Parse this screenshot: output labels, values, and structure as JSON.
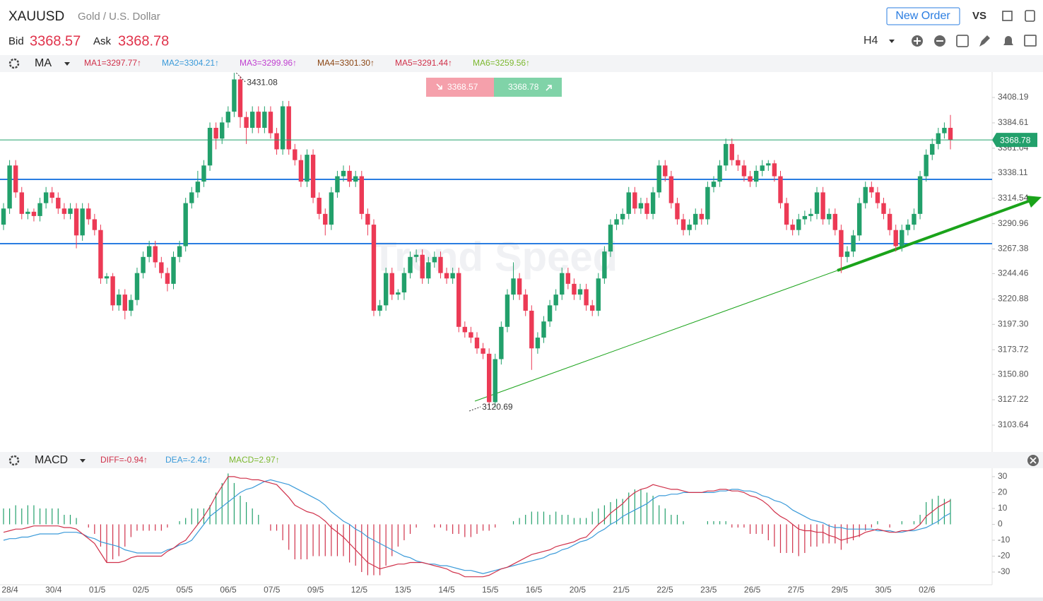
{
  "header": {
    "symbol": "XAUUSD",
    "name": "Gold / U.S. Dollar",
    "bid_label": "Bid",
    "bid": 3368.57,
    "ask_label": "Ask",
    "ask": 3368.78,
    "new_order": "New Order",
    "vs": "VS",
    "timeframe": "H4"
  },
  "chart_data": {
    "type": "candlestick",
    "indicator": "MA",
    "watermark": "Trend Speed",
    "ma_labels": [
      "MA1=3297.77↑",
      "MA2=3304.21↑",
      "MA3=3299.96↑",
      "MA4=3301.30↑",
      "MA5=3291.44↑",
      "MA6=3259.56↑"
    ],
    "ma_colors": [
      "#d0314a",
      "#3a9ad9",
      "#c040d0",
      "#8b4513",
      "#d0314a",
      "#7cb82f"
    ],
    "up_color": "#22a06b",
    "down_color": "#ec3a55",
    "last_price": 3368.78,
    "last_color": "#22a06b",
    "ylim": [
      3080,
      3431.2
    ],
    "yticks": [
      {
        "value": 3408.19,
        "label": "3408.19"
      },
      3384.61,
      3361.04,
      3338.11,
      3314.54,
      3290.96,
      3267.38,
      3244.46,
      3220.88,
      {
        "value": 3197.3,
        "label": "3197.30"
      },
      3173.72,
      {
        "value": 3150.8,
        "label": "3150.80"
      },
      3127.22,
      3103.64
    ],
    "ohlc": [
      [
        3290,
        3310,
        3285,
        3305
      ],
      [
        3305,
        3350,
        3300,
        3345
      ],
      [
        3345,
        3350,
        3315,
        3320
      ],
      [
        3320,
        3325,
        3295,
        3300
      ],
      [
        3300,
        3305,
        3295,
        3302
      ],
      [
        3302,
        3305,
        3293,
        3298
      ],
      [
        3298,
        3315,
        3293,
        3310
      ],
      [
        3310,
        3325,
        3305,
        3320
      ],
      [
        3320,
        3325,
        3310,
        3315
      ],
      [
        3315,
        3320,
        3300,
        3305
      ],
      [
        3305,
        3310,
        3295,
        3300
      ],
      [
        3300,
        3310,
        3295,
        3305
      ],
      [
        3305,
        3310,
        3268,
        3280
      ],
      [
        3280,
        3310,
        3275,
        3305
      ],
      [
        3305,
        3310,
        3290,
        3295
      ],
      [
        3295,
        3300,
        3280,
        3285
      ],
      [
        3285,
        3290,
        3235,
        3240
      ],
      [
        3240,
        3245,
        3235,
        3242
      ],
      [
        3242,
        3245,
        3210,
        3215
      ],
      [
        3215,
        3230,
        3210,
        3225
      ],
      [
        3225,
        3230,
        3202,
        3210
      ],
      [
        3210,
        3225,
        3205,
        3220
      ],
      [
        3220,
        3250,
        3215,
        3245
      ],
      [
        3245,
        3265,
        3240,
        3260
      ],
      [
        3260,
        3275,
        3255,
        3270
      ],
      [
        3270,
        3275,
        3250,
        3255
      ],
      [
        3255,
        3260,
        3240,
        3245
      ],
      [
        3245,
        3250,
        3228,
        3235
      ],
      [
        3235,
        3265,
        3230,
        3260
      ],
      [
        3260,
        3275,
        3255,
        3270
      ],
      [
        3270,
        3315,
        3265,
        3310
      ],
      [
        3310,
        3325,
        3305,
        3320
      ],
      [
        3320,
        3340,
        3315,
        3330
      ],
      [
        3330,
        3350,
        3325,
        3345
      ],
      [
        3345,
        3385,
        3340,
        3380
      ],
      [
        3380,
        3385,
        3360,
        3370
      ],
      [
        3370,
        3390,
        3365,
        3385
      ],
      [
        3385,
        3400,
        3380,
        3395
      ],
      [
        3395,
        3431.08,
        3390,
        3425
      ],
      [
        3425,
        3428,
        3380,
        3390
      ],
      [
        3390,
        3395,
        3365,
        3380
      ],
      [
        3380,
        3400,
        3375,
        3395
      ],
      [
        3395,
        3400,
        3375,
        3380
      ],
      [
        3380,
        3400,
        3375,
        3395
      ],
      [
        3395,
        3400,
        3370,
        3375
      ],
      [
        3375,
        3380,
        3355,
        3360
      ],
      [
        3360,
        3405,
        3355,
        3400
      ],
      [
        3400,
        3405,
        3355,
        3360
      ],
      [
        3360,
        3365,
        3345,
        3350
      ],
      [
        3350,
        3355,
        3325,
        3330
      ],
      [
        3330,
        3360,
        3325,
        3355
      ],
      [
        3355,
        3360,
        3310,
        3315
      ],
      [
        3315,
        3320,
        3295,
        3300
      ],
      [
        3300,
        3305,
        3280,
        3290
      ],
      [
        3290,
        3325,
        3285,
        3320
      ],
      [
        3320,
        3340,
        3315,
        3335
      ],
      [
        3335,
        3345,
        3330,
        3340
      ],
      [
        3340,
        3345,
        3325,
        3330
      ],
      [
        3330,
        3340,
        3325,
        3335
      ],
      [
        3335,
        3340,
        3295,
        3300
      ],
      [
        3300,
        3305,
        3280,
        3290
      ],
      [
        3290,
        3295,
        3205,
        3210
      ],
      [
        3210,
        3220,
        3205,
        3215
      ],
      [
        3215,
        3250,
        3210,
        3245
      ],
      [
        3245,
        3250,
        3220,
        3225
      ],
      [
        3225,
        3230,
        3220,
        3227
      ],
      [
        3227,
        3250,
        3220,
        3245
      ],
      [
        3245,
        3265,
        3240,
        3260
      ],
      [
        3260,
        3267,
        3255,
        3262
      ],
      [
        3262,
        3267,
        3235,
        3240
      ],
      [
        3240,
        3260,
        3235,
        3255
      ],
      [
        3255,
        3265,
        3250,
        3260
      ],
      [
        3260,
        3265,
        3240,
        3245
      ],
      [
        3245,
        3250,
        3235,
        3240
      ],
      [
        3240,
        3250,
        3235,
        3245
      ],
      [
        3245,
        3250,
        3190,
        3195
      ],
      [
        3195,
        3200,
        3185,
        3190
      ],
      [
        3190,
        3195,
        3180,
        3185
      ],
      [
        3185,
        3190,
        3170,
        3175
      ],
      [
        3175,
        3180,
        3165,
        3170
      ],
      [
        3170,
        3175,
        3120.69,
        3125
      ],
      [
        3125,
        3170,
        3120,
        3165
      ],
      [
        3165,
        3200,
        3160,
        3195
      ],
      [
        3195,
        3230,
        3190,
        3225
      ],
      [
        3225,
        3255,
        3220,
        3240
      ],
      [
        3240,
        3245,
        3220,
        3225
      ],
      [
        3225,
        3230,
        3205,
        3210
      ],
      [
        3210,
        3215,
        3155,
        3175
      ],
      [
        3175,
        3190,
        3170,
        3185
      ],
      [
        3185,
        3205,
        3180,
        3200
      ],
      [
        3200,
        3220,
        3195,
        3215
      ],
      [
        3215,
        3230,
        3210,
        3225
      ],
      [
        3225,
        3250,
        3220,
        3245
      ],
      [
        3245,
        3250,
        3230,
        3235
      ],
      [
        3235,
        3240,
        3220,
        3225
      ],
      [
        3225,
        3235,
        3220,
        3230
      ],
      [
        3230,
        3235,
        3210,
        3215
      ],
      [
        3215,
        3220,
        3205,
        3210
      ],
      [
        3210,
        3245,
        3205,
        3240
      ],
      [
        3240,
        3270,
        3235,
        3265
      ],
      [
        3265,
        3295,
        3260,
        3290
      ],
      [
        3290,
        3300,
        3285,
        3295
      ],
      [
        3295,
        3305,
        3290,
        3300
      ],
      [
        3300,
        3325,
        3295,
        3320
      ],
      [
        3320,
        3325,
        3300,
        3305
      ],
      [
        3305,
        3315,
        3300,
        3310
      ],
      [
        3310,
        3315,
        3295,
        3300
      ],
      [
        3300,
        3325,
        3295,
        3320
      ],
      [
        3320,
        3350,
        3315,
        3345
      ],
      [
        3345,
        3350,
        3330,
        3335
      ],
      [
        3335,
        3340,
        3305,
        3310
      ],
      [
        3310,
        3315,
        3290,
        3295
      ],
      [
        3295,
        3300,
        3280,
        3285
      ],
      [
        3285,
        3295,
        3280,
        3290
      ],
      [
        3290,
        3305,
        3285,
        3300
      ],
      [
        3300,
        3305,
        3290,
        3295
      ],
      [
        3295,
        3330,
        3290,
        3325
      ],
      [
        3325,
        3335,
        3320,
        3330
      ],
      [
        3330,
        3350,
        3325,
        3345
      ],
      [
        3345,
        3370,
        3340,
        3365
      ],
      [
        3365,
        3370,
        3345,
        3350
      ],
      [
        3350,
        3355,
        3340,
        3345
      ],
      [
        3345,
        3350,
        3330,
        3335
      ],
      [
        3335,
        3340,
        3325,
        3330
      ],
      [
        3330,
        3345,
        3325,
        3340
      ],
      [
        3340,
        3350,
        3335,
        3345
      ],
      [
        3345,
        3350,
        3340,
        3347
      ],
      [
        3347,
        3350,
        3330,
        3335
      ],
      [
        3335,
        3340,
        3305,
        3310
      ],
      [
        3310,
        3315,
        3285,
        3290
      ],
      [
        3290,
        3295,
        3280,
        3285
      ],
      [
        3285,
        3300,
        3280,
        3295
      ],
      [
        3295,
        3303,
        3290,
        3298
      ],
      [
        3298,
        3305,
        3293,
        3300
      ],
      [
        3300,
        3325,
        3295,
        3320
      ],
      [
        3320,
        3325,
        3290,
        3295
      ],
      [
        3295,
        3305,
        3290,
        3300
      ],
      [
        3300,
        3305,
        3280,
        3285
      ],
      [
        3285,
        3290,
        3245,
        3260
      ],
      [
        3260,
        3270,
        3255,
        3265
      ],
      [
        3265,
        3285,
        3260,
        3280
      ],
      [
        3280,
        3315,
        3275,
        3310
      ],
      [
        3310,
        3330,
        3305,
        3325
      ],
      [
        3325,
        3330,
        3315,
        3320
      ],
      [
        3320,
        3325,
        3305,
        3310
      ],
      [
        3310,
        3315,
        3295,
        3300
      ],
      [
        3300,
        3305,
        3280,
        3285
      ],
      [
        3285,
        3290,
        3265,
        3270
      ],
      [
        3270,
        3290,
        3265,
        3285
      ],
      [
        3285,
        3295,
        3280,
        3290
      ],
      [
        3290,
        3305,
        3285,
        3300
      ],
      [
        3300,
        3340,
        3295,
        3335
      ],
      [
        3335,
        3360,
        3330,
        3355
      ],
      [
        3355,
        3370,
        3350,
        3365
      ],
      [
        3365,
        3380,
        3360,
        3375
      ],
      [
        3375,
        3385,
        3370,
        3380
      ],
      [
        3380,
        3392,
        3360,
        3368.78
      ]
    ],
    "dates": [
      "28/4",
      "30/4",
      "01/5",
      "02/5",
      "05/5",
      "06/5",
      "07/5",
      "09/5",
      "12/5",
      "13/5",
      "14/5",
      "15/5",
      "16/5",
      "20/5",
      "21/5",
      "22/5",
      "23/5",
      "26/5",
      "27/5",
      "29/5",
      "30/5",
      "02/6"
    ],
    "macd": {
      "type": "macd",
      "title": "MACD",
      "labels": [
        "DIFF=-0.94↑",
        "DEA=-2.42↑",
        "MACD=2.97↑"
      ],
      "label_colors": [
        "#d0314a",
        "#3a9ad9",
        "#7cb82f"
      ],
      "diff_color": "#d0314a",
      "dea_color": "#3a9ad9",
      "up_color": "#22a06b",
      "down_color": "#d0314a",
      "ylim": [
        -38,
        35.3
      ],
      "yticks": [
        30,
        20,
        10,
        0,
        -10,
        -20,
        -30
      ],
      "diff": [
        -5,
        -4,
        -3,
        -3,
        -2,
        -1,
        -1,
        -1,
        -1,
        -1,
        -2,
        -2,
        -3,
        -6,
        -9,
        -12,
        -18,
        -24,
        -24,
        -24,
        -23,
        -21,
        -20,
        -20,
        -20,
        -20,
        -20,
        -17,
        -15,
        -12,
        -10,
        -5,
        0,
        5,
        11,
        18,
        24,
        30,
        30,
        29,
        29,
        28,
        28,
        27,
        26,
        25,
        21,
        17,
        12,
        10,
        8,
        7,
        5,
        2,
        -2,
        -5,
        -8,
        -12,
        -16,
        -20,
        -24,
        -26,
        -28,
        -27,
        -26,
        -25,
        -25,
        -24,
        -24,
        -24,
        -25,
        -26,
        -27,
        -28,
        -30,
        -31,
        -33,
        -33,
        -33,
        -33,
        -32,
        -30,
        -28,
        -27,
        -25,
        -23,
        -21,
        -19,
        -18,
        -17,
        -16,
        -14,
        -13,
        -12,
        -11,
        -9,
        -8,
        -4,
        0,
        3,
        7,
        10,
        13,
        17,
        20,
        22,
        23,
        25,
        24,
        23,
        22,
        22,
        21,
        20,
        20,
        20,
        21,
        21,
        22,
        22,
        21,
        21,
        20,
        18,
        17,
        15,
        12,
        8,
        5,
        3,
        0,
        -3,
        -4,
        -4,
        -5,
        -5,
        -7,
        -8,
        -10,
        -9,
        -8,
        -7,
        -5,
        -4,
        -3,
        -4,
        -5,
        -5,
        -4,
        -4,
        -3,
        0,
        5,
        8,
        11,
        13,
        15
      ],
      "dea": [
        -10,
        -9,
        -9,
        -8,
        -8,
        -7,
        -6,
        -6,
        -6,
        -6,
        -5,
        -5,
        -5,
        -6,
        -8,
        -9,
        -11,
        -12,
        -13,
        -14,
        -16,
        -17,
        -18,
        -18,
        -18,
        -18,
        -18,
        -16,
        -15,
        -13,
        -12,
        -10,
        -5,
        0,
        5,
        8,
        11,
        14,
        17,
        20,
        22,
        23,
        25,
        27,
        28,
        27,
        26,
        25,
        23,
        21,
        19,
        17,
        15,
        12,
        8,
        5,
        2,
        0,
        -3,
        -5,
        -8,
        -10,
        -12,
        -14,
        -16,
        -18,
        -20,
        -21,
        -23,
        -24,
        -25,
        -25,
        -26,
        -26,
        -27,
        -28,
        -29,
        -29,
        -30,
        -31,
        -30,
        -29,
        -28,
        -27,
        -26,
        -25,
        -24,
        -23,
        -22,
        -21,
        -19,
        -18,
        -16,
        -15,
        -13,
        -11,
        -10,
        -8,
        -5,
        -3,
        0,
        2,
        5,
        7,
        9,
        11,
        13,
        16,
        18,
        18,
        19,
        19,
        20,
        20,
        20,
        20,
        20,
        20,
        21,
        21,
        22,
        22,
        21,
        21,
        20,
        18,
        17,
        15,
        14,
        12,
        9,
        7,
        5,
        3,
        2,
        1,
        -1,
        -2,
        -2,
        -3,
        -3,
        -3,
        -3,
        -3,
        -4,
        -4,
        -4,
        -5,
        -5,
        -4,
        -4,
        -3,
        -2,
        0,
        2,
        5,
        7
      ],
      "hist": [
        10,
        10,
        12,
        10,
        12,
        12,
        10,
        10,
        10,
        10,
        6,
        6,
        4,
        0,
        -2,
        -6,
        -14,
        -24,
        -22,
        -20,
        -14,
        -8,
        -4,
        -4,
        -4,
        -4,
        -4,
        -2,
        0,
        2,
        4,
        10,
        10,
        10,
        12,
        20,
        26,
        32,
        26,
        18,
        14,
        10,
        6,
        0,
        -4,
        -4,
        -10,
        -16,
        -22,
        -22,
        -22,
        -20,
        -20,
        -20,
        -20,
        -20,
        -20,
        -24,
        -26,
        -30,
        -32,
        -32,
        -32,
        -26,
        -20,
        -14,
        -10,
        -6,
        -2,
        0,
        0,
        -2,
        -2,
        -4,
        -6,
        -6,
        -8,
        -8,
        -6,
        -4,
        -4,
        -2,
        0,
        0,
        2,
        4,
        6,
        8,
        8,
        8,
        6,
        8,
        6,
        6,
        4,
        4,
        4,
        8,
        10,
        12,
        14,
        16,
        16,
        20,
        22,
        22,
        20,
        18,
        12,
        10,
        6,
        6,
        2,
        0,
        0,
        0,
        2,
        2,
        2,
        2,
        -2,
        -2,
        -2,
        -6,
        -6,
        -6,
        -10,
        -14,
        -18,
        -18,
        -18,
        -20,
        -18,
        -14,
        -14,
        -12,
        -12,
        -12,
        -16,
        -12,
        -10,
        -8,
        -4,
        -2,
        2,
        0,
        -2,
        0,
        2,
        0,
        2,
        6,
        14,
        16,
        18,
        16,
        16
      ]
    }
  }
}
